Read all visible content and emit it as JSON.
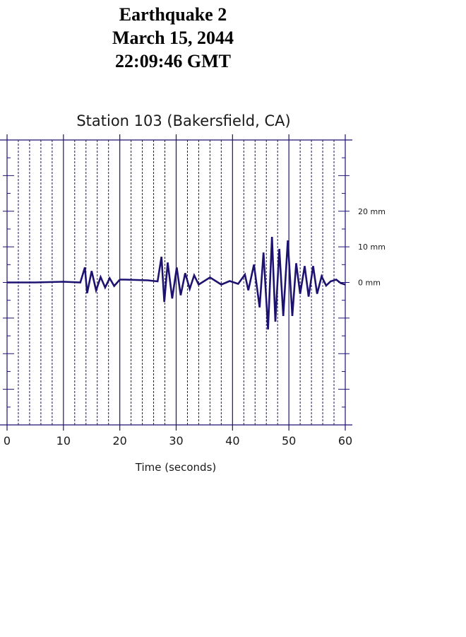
{
  "header": {
    "lines": [
      "Earthquake 2",
      "March 15, 2044",
      "22:09:46 GMT"
    ]
  },
  "colors": {
    "trace": "#1d1270",
    "grid": "#1d1270"
  },
  "chart_data": {
    "type": "line",
    "title": "Station 103 (Bakersfield, CA)",
    "xlabel": "Time (seconds)",
    "ylabel": "",
    "xlim": [
      0,
      60
    ],
    "ylim": [
      -40,
      40
    ],
    "x_ticks": [
      0,
      10,
      20,
      30,
      40,
      50,
      60
    ],
    "x_tick_labels": [
      "0",
      "10",
      "20",
      "30",
      "40",
      "50",
      "60"
    ],
    "amplitude_labels": [
      {
        "value": 20,
        "text": "20 mm"
      },
      {
        "value": 10,
        "text": "10 mm"
      },
      {
        "value": 0,
        "text": "0 mm"
      }
    ],
    "grid": {
      "major_every": 10,
      "minor_every": 2
    },
    "series": [
      {
        "x": [
          0,
          5,
          10,
          13,
          13.8,
          14.2,
          15,
          15.8,
          16.6,
          17.4,
          18.2,
          19,
          20,
          21,
          25,
          26.7,
          27.4,
          27.9,
          28.5,
          29.3,
          30.1,
          30.8,
          31.6,
          32.4,
          33.2,
          34,
          36,
          38,
          39.5,
          41,
          42.2,
          42.8,
          43.8,
          44.8,
          45.5,
          46.3,
          47,
          47.6,
          48.3,
          49,
          49.8,
          50.6,
          51.3,
          52,
          52.8,
          53.5,
          54.3,
          55,
          55.8,
          56.6,
          57.4,
          58.4,
          59.2,
          60
        ],
        "y": [
          0,
          0,
          0.2,
          0,
          4.2,
          -3,
          3.2,
          -2.2,
          1.5,
          -1.4,
          1.2,
          -1,
          0.8,
          0.8,
          0.6,
          0.3,
          7.2,
          -5.5,
          5.6,
          -4.5,
          4.2,
          -3.6,
          2.6,
          -1.8,
          2,
          -0.6,
          1.4,
          -0.6,
          0.4,
          -0.4,
          2.2,
          -2.2,
          5,
          -7,
          8.4,
          -13.2,
          12.8,
          -11,
          9.4,
          -9.4,
          11.8,
          -9.4,
          5.4,
          -3.2,
          4.6,
          -4,
          4.6,
          -3.2,
          1.7,
          -0.9,
          0.3,
          0.8,
          -0.2,
          -0.6
        ]
      }
    ]
  }
}
